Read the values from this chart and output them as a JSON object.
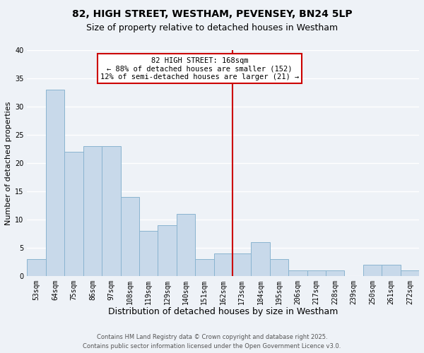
{
  "title": "82, HIGH STREET, WESTHAM, PEVENSEY, BN24 5LP",
  "subtitle": "Size of property relative to detached houses in Westham",
  "xlabel": "Distribution of detached houses by size in Westham",
  "ylabel": "Number of detached properties",
  "bar_color": "#c8d9ea",
  "bar_edge_color": "#8ab4d0",
  "background_color": "#eef2f7",
  "grid_color": "#ffffff",
  "bins": [
    "53sqm",
    "64sqm",
    "75sqm",
    "86sqm",
    "97sqm",
    "108sqm",
    "119sqm",
    "129sqm",
    "140sqm",
    "151sqm",
    "162sqm",
    "173sqm",
    "184sqm",
    "195sqm",
    "206sqm",
    "217sqm",
    "228sqm",
    "239sqm",
    "250sqm",
    "261sqm",
    "272sqm"
  ],
  "values": [
    3,
    33,
    22,
    23,
    23,
    14,
    8,
    9,
    11,
    3,
    4,
    4,
    6,
    3,
    1,
    1,
    1,
    0,
    2,
    2,
    1
  ],
  "ylim": [
    0,
    40
  ],
  "yticks": [
    0,
    5,
    10,
    15,
    20,
    25,
    30,
    35,
    40
  ],
  "vline_x": 10.5,
  "vline_color": "#cc0000",
  "annotation_line1": "82 HIGH STREET: 168sqm",
  "annotation_line2": "← 88% of detached houses are smaller (152)",
  "annotation_line3": "12% of semi-detached houses are larger (21) →",
  "annotation_box_color": "#ffffff",
  "annotation_box_edge_color": "#cc0000",
  "footer_line1": "Contains HM Land Registry data © Crown copyright and database right 2025.",
  "footer_line2": "Contains public sector information licensed under the Open Government Licence v3.0.",
  "title_fontsize": 10,
  "subtitle_fontsize": 9,
  "xlabel_fontsize": 9,
  "ylabel_fontsize": 8,
  "tick_fontsize": 7,
  "annotation_fontsize": 7.5,
  "footer_fontsize": 6
}
